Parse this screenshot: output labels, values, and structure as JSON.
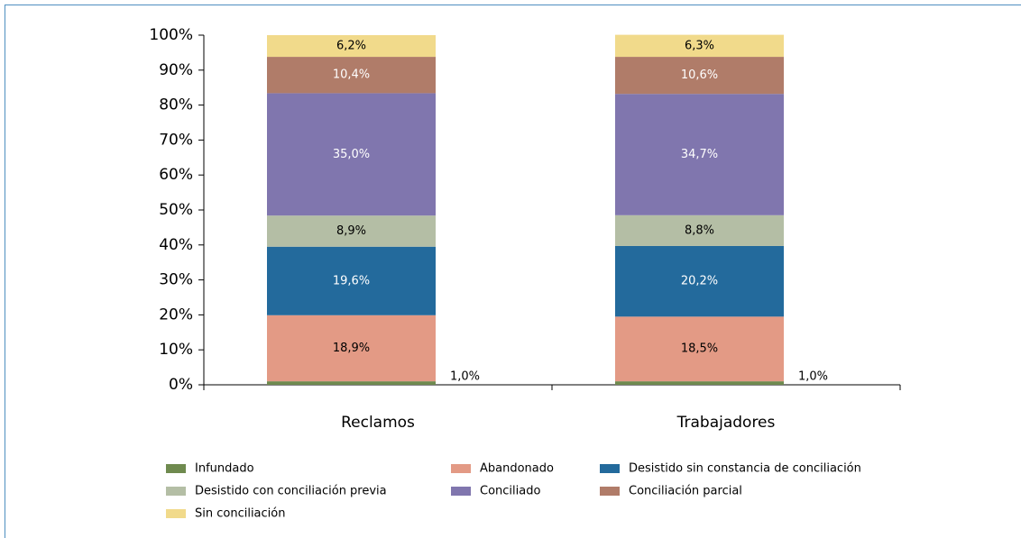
{
  "chart_data": {
    "type": "stacked_bar",
    "categories": [
      "Reclamos",
      "Trabajadores"
    ],
    "series": [
      {
        "name": "Infundado",
        "color": "#6f8a4f",
        "label_color": "#000000",
        "values": [
          1.0,
          1.0
        ],
        "value_labels": [
          "1,0%",
          "1,0%"
        ]
      },
      {
        "name": "Abandonado",
        "color": "#e39a85",
        "label_color": "#000000",
        "values": [
          18.9,
          18.5
        ],
        "value_labels": [
          "18,9%",
          "18,5%"
        ]
      },
      {
        "name": "Desistido sin constancia de conciliación",
        "color": "#236a9c",
        "label_color": "#ffffff",
        "values": [
          19.6,
          20.2
        ],
        "value_labels": [
          "19,6%",
          "20,2%"
        ]
      },
      {
        "name": "Desistido con conciliación previa",
        "color": "#b4bea5",
        "label_color": "#000000",
        "values": [
          8.9,
          8.8
        ],
        "value_labels": [
          "8,9%",
          "8,8%"
        ]
      },
      {
        "name": "Conciliado",
        "color": "#8076ae",
        "label_color": "#ffffff",
        "values": [
          35.0,
          34.7
        ],
        "value_labels": [
          "35,0%",
          "34,7%"
        ]
      },
      {
        "name": "Conciliación parcial",
        "color": "#b07c69",
        "label_color": "#ffffff",
        "values": [
          10.4,
          10.6
        ],
        "value_labels": [
          "10,4%",
          "10,6%"
        ]
      },
      {
        "name": "Sin conciliación",
        "color": "#f1da8b",
        "label_color": "#000000",
        "values": [
          6.2,
          6.3
        ],
        "value_labels": [
          "6,2%",
          "6,3%"
        ]
      }
    ],
    "ylim": [
      0,
      100
    ],
    "yticks": [
      {
        "value": 0,
        "label": "0%"
      },
      {
        "value": 10,
        "label": "10%"
      },
      {
        "value": 20,
        "label": "20%"
      },
      {
        "value": 30,
        "label": "30%"
      },
      {
        "value": 40,
        "label": "40%"
      },
      {
        "value": 50,
        "label": "50%"
      },
      {
        "value": 60,
        "label": "60%"
      },
      {
        "value": 70,
        "label": "70%"
      },
      {
        "value": 80,
        "label": "80%"
      },
      {
        "value": 90,
        "label": "90%"
      },
      {
        "value": 100,
        "label": "100%"
      }
    ],
    "legend": "bottom"
  }
}
